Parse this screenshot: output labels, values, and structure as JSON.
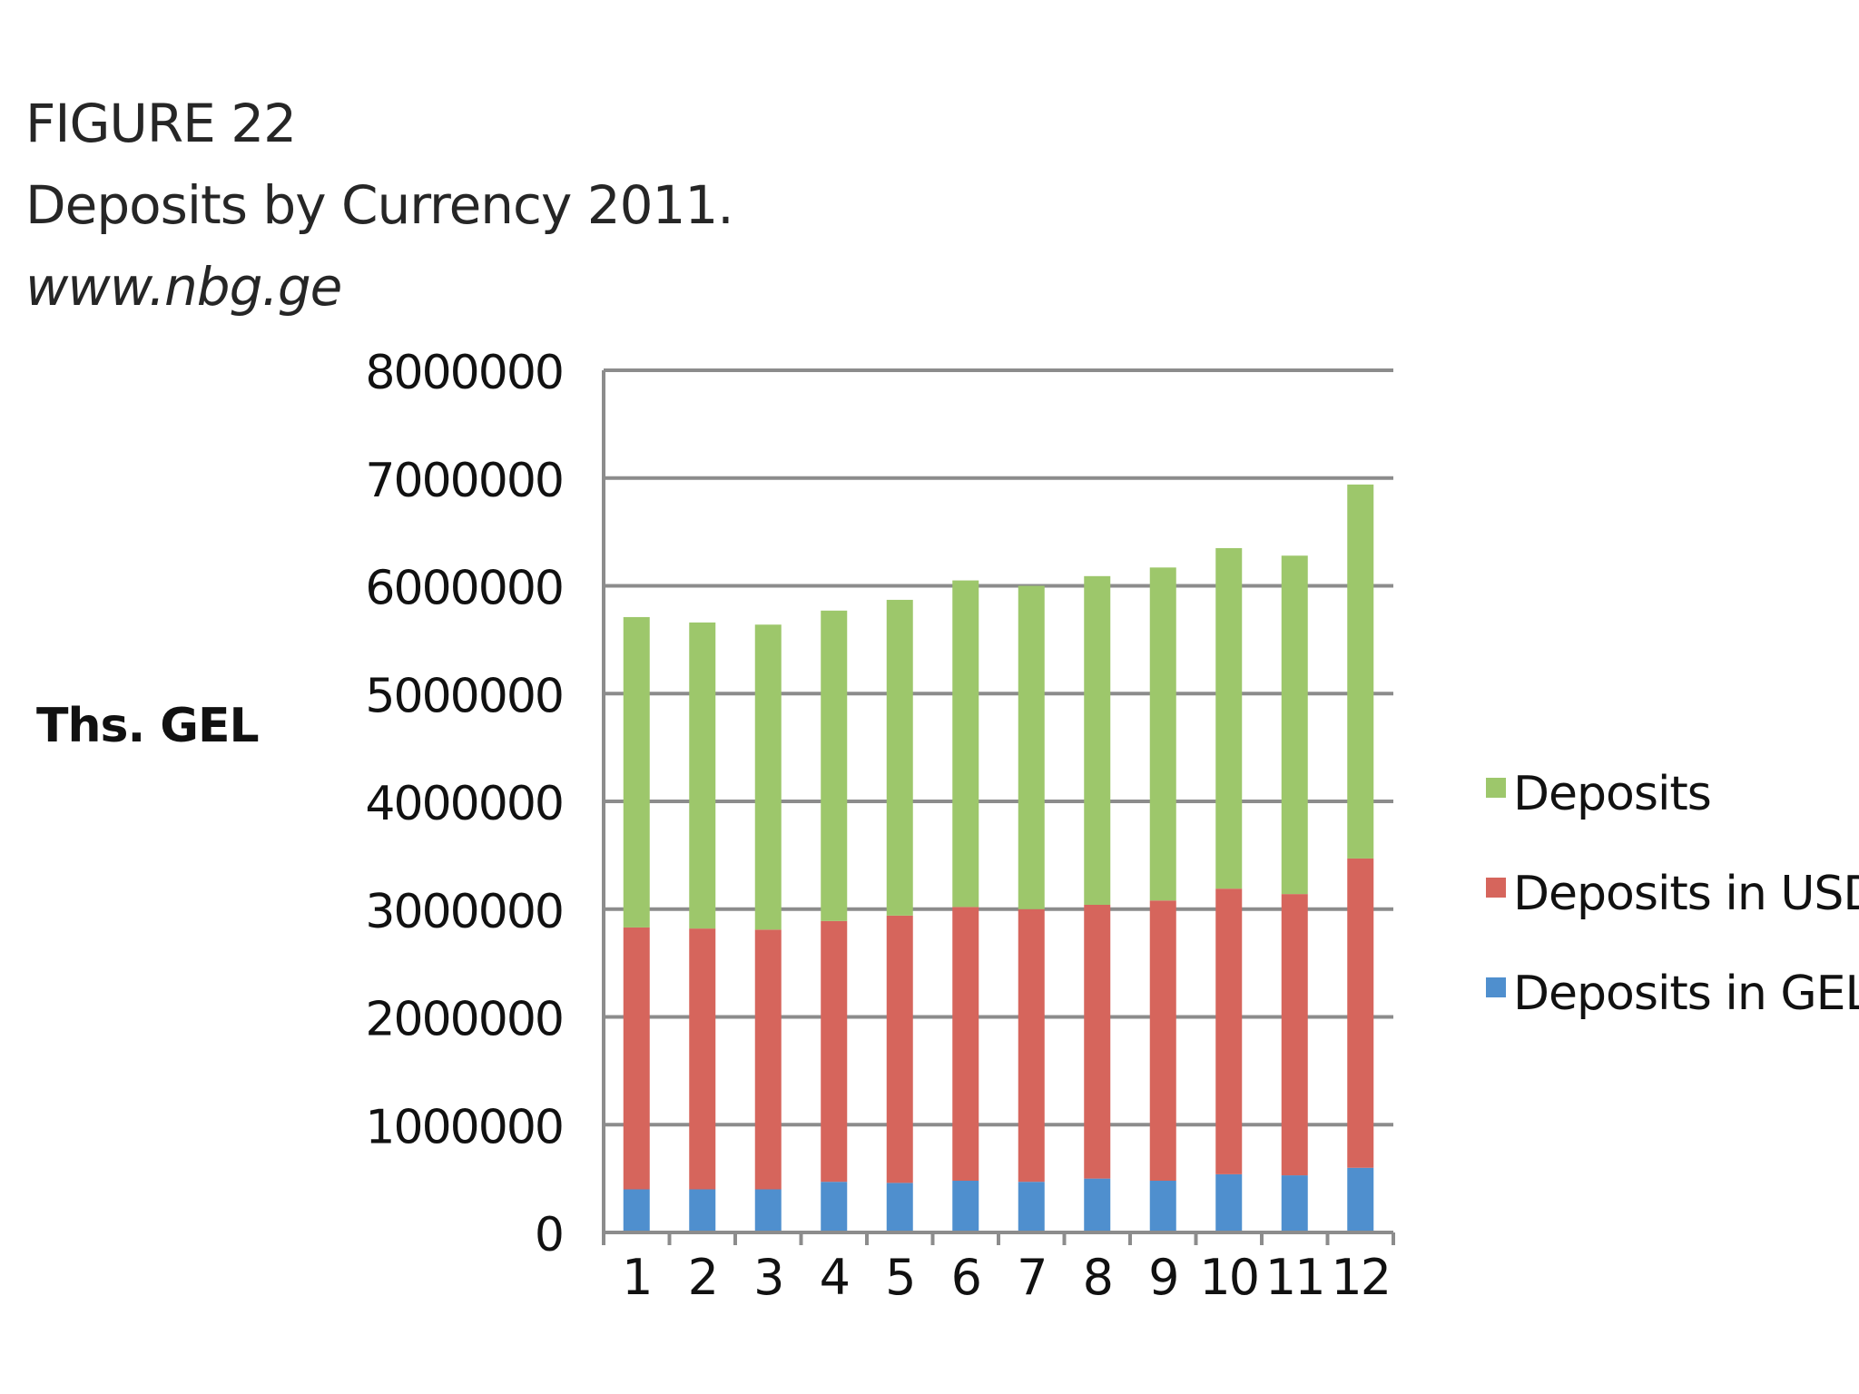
{
  "figure": {
    "number_label": "FIGURE 22",
    "caption": "Deposits by Currency 2011.",
    "source": "www.nbg.ge"
  },
  "chart_data": {
    "type": "bar",
    "stacked": true,
    "title": "Deposits by Currency 2011.",
    "ylabel": "Ths. GEL",
    "xlabel": "",
    "categories": [
      "1",
      "2",
      "3",
      "4",
      "5",
      "6",
      "7",
      "8",
      "9",
      "10",
      "11",
      "12"
    ],
    "ylim": [
      0,
      8000000
    ],
    "yticks": [
      0,
      1000000,
      2000000,
      3000000,
      4000000,
      5000000,
      6000000,
      7000000,
      8000000
    ],
    "grid": true,
    "legend_position": "right",
    "series": [
      {
        "name": "Deposits in GEL",
        "color": "#4f8fce",
        "values": [
          400000,
          400000,
          400000,
          470000,
          460000,
          480000,
          470000,
          500000,
          480000,
          540000,
          530000,
          600000
        ]
      },
      {
        "name": "Deposits in USD",
        "color": "#d6655c",
        "values": [
          2430000,
          2420000,
          2410000,
          2420000,
          2480000,
          2540000,
          2530000,
          2540000,
          2600000,
          2650000,
          2610000,
          2870000
        ]
      },
      {
        "name": "Deposits",
        "color": "#9dc76b",
        "values": [
          2880000,
          2840000,
          2830000,
          2880000,
          2930000,
          3030000,
          3000000,
          3050000,
          3090000,
          3160000,
          3140000,
          3470000
        ]
      }
    ]
  },
  "legend": {
    "items": [
      {
        "label": "Deposits",
        "color": "#9dc76b"
      },
      {
        "label": "Deposits in USD",
        "color": "#d6655c"
      },
      {
        "label": "Deposits in GEL",
        "color": "#4f8fce"
      }
    ]
  }
}
